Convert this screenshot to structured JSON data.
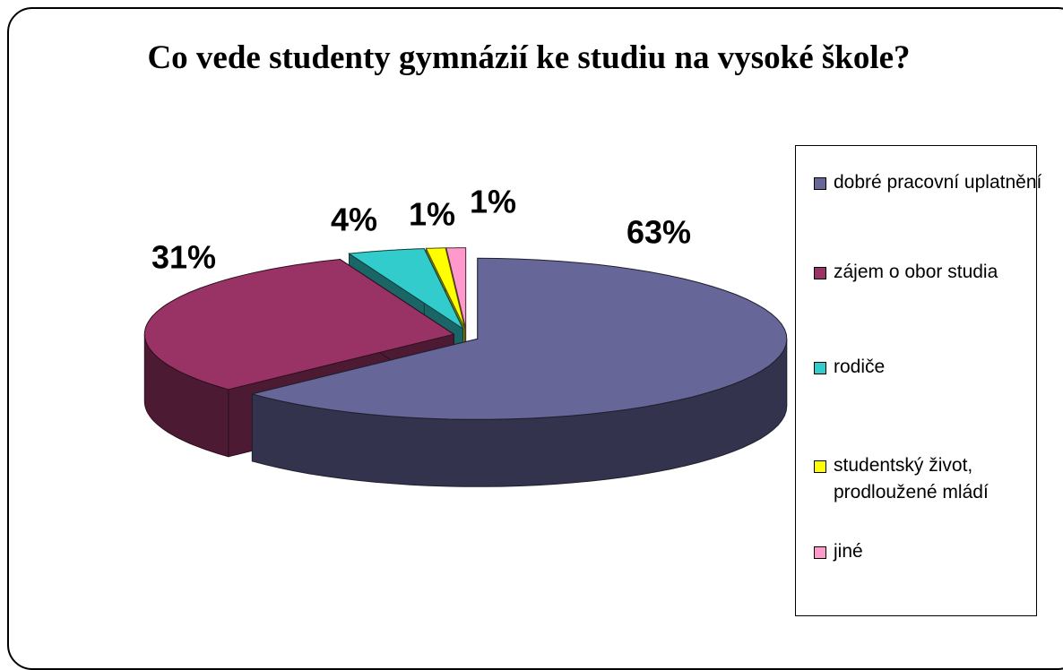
{
  "chart_data": {
    "type": "pie3d",
    "title": "Co vede studenty gymnázií ke studiu na vysoké škole?",
    "categories": [
      "dobré pracovní uplatnění",
      "zájem o obor studia",
      "rodiče",
      "studentský život, prodloužené mládí",
      "jiné"
    ],
    "values": [
      63,
      31,
      4,
      1,
      1
    ],
    "value_labels": [
      "63%",
      "31%",
      "4%",
      "1%",
      "1%"
    ],
    "colors": [
      "#666699",
      "#993366",
      "#33cccc",
      "#ffff00",
      "#ff99cc"
    ],
    "legend": "right"
  }
}
